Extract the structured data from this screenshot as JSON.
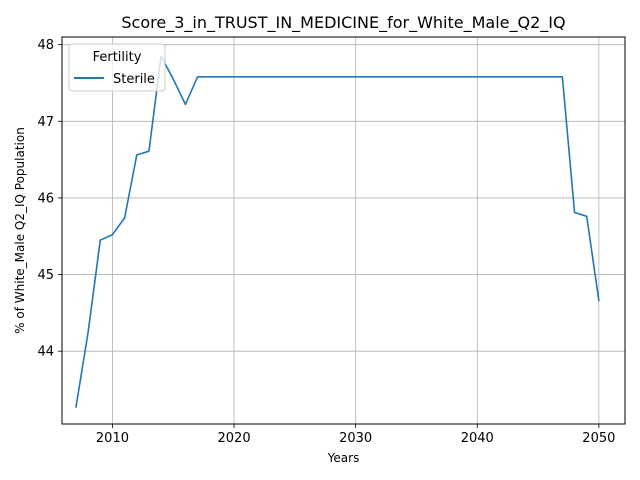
{
  "chart_data": {
    "type": "line",
    "title": "Score_3_in_TRUST_IN_MEDICINE_for_White_Male_Q2_IQ",
    "xlabel": "Years",
    "ylabel": "% of White_Male Q2_IQ Population",
    "xlim": [
      2005.85,
      2052.15
    ],
    "ylim": [
      43.05,
      48.1
    ],
    "xticks": [
      2010,
      2020,
      2030,
      2040,
      2050
    ],
    "yticks": [
      44,
      45,
      46,
      47,
      48
    ],
    "grid": true,
    "legend": {
      "title": "Fertility",
      "position": "top-left"
    },
    "x": [
      2007,
      2008,
      2009,
      2010,
      2011,
      2012,
      2013,
      2014,
      2015,
      2016,
      2017,
      2018,
      2019,
      2020,
      2021,
      2022,
      2023,
      2024,
      2025,
      2026,
      2027,
      2028,
      2029,
      2030,
      2031,
      2032,
      2033,
      2034,
      2035,
      2036,
      2037,
      2038,
      2039,
      2040,
      2041,
      2042,
      2043,
      2044,
      2045,
      2046,
      2047,
      2048,
      2049,
      2050
    ],
    "series": [
      {
        "name": "Sterile",
        "color": "#1f77b4",
        "values": [
          43.27,
          44.25,
          45.45,
          45.52,
          45.74,
          46.56,
          46.61,
          47.85,
          47.55,
          47.22,
          47.58,
          47.58,
          47.58,
          47.58,
          47.58,
          47.58,
          47.58,
          47.58,
          47.58,
          47.58,
          47.58,
          47.58,
          47.58,
          47.58,
          47.58,
          47.58,
          47.58,
          47.58,
          47.58,
          47.58,
          47.58,
          47.58,
          47.58,
          47.58,
          47.58,
          47.58,
          47.58,
          47.58,
          47.58,
          47.58,
          47.58,
          45.81,
          45.76,
          44.66
        ]
      }
    ]
  }
}
